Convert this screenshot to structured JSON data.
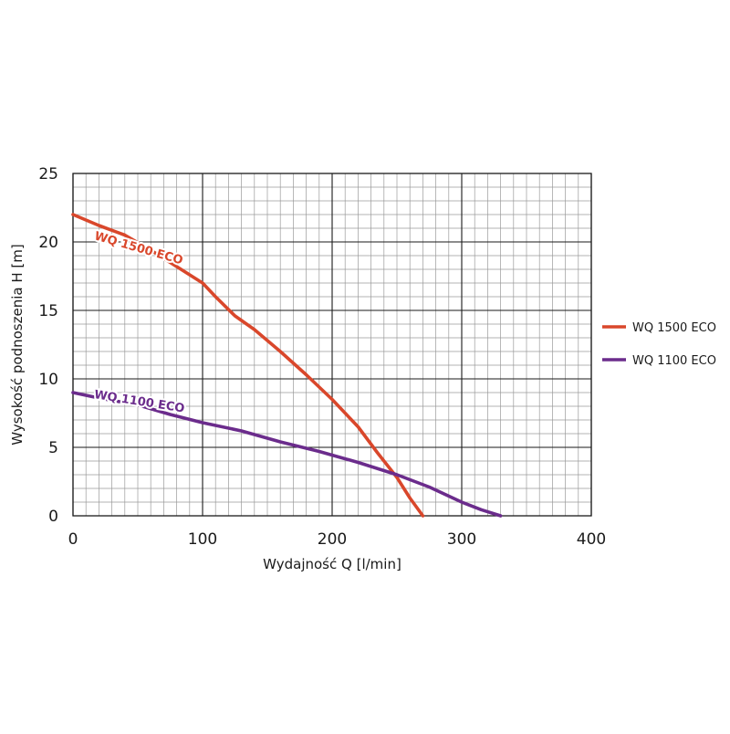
{
  "chart_data": {
    "type": "line",
    "xlabel": "Wydajność Q [l/min]",
    "ylabel": "Wysokość podnoszenia H [m]",
    "xlim": [
      0,
      400
    ],
    "ylim": [
      0,
      25
    ],
    "x_ticks": [
      "0",
      "100",
      "200",
      "300",
      "400"
    ],
    "y_ticks": [
      "0",
      "5",
      "10",
      "15",
      "20",
      "25"
    ],
    "grid": true,
    "legend_position": "right",
    "series": [
      {
        "name": "WQ 1500 ECO",
        "color": "#d9472b",
        "points": [
          [
            0,
            22
          ],
          [
            20,
            21.2
          ],
          [
            40,
            20.5
          ],
          [
            60,
            19.4
          ],
          [
            80,
            18.2
          ],
          [
            100,
            17
          ],
          [
            110,
            16
          ],
          [
            125,
            14.6
          ],
          [
            140,
            13.6
          ],
          [
            160,
            12
          ],
          [
            180,
            10.3
          ],
          [
            200,
            8.5
          ],
          [
            220,
            6.5
          ],
          [
            235,
            4.6
          ],
          [
            250,
            2.8
          ],
          [
            260,
            1.3
          ],
          [
            270,
            0
          ]
        ]
      },
      {
        "name": "WQ 1100 ECO",
        "color": "#6b2c8c",
        "points": [
          [
            0,
            9
          ],
          [
            20,
            8.6
          ],
          [
            50,
            8.1
          ],
          [
            75,
            7.4
          ],
          [
            100,
            6.8
          ],
          [
            130,
            6.2
          ],
          [
            160,
            5.4
          ],
          [
            190,
            4.7
          ],
          [
            220,
            3.9
          ],
          [
            250,
            3
          ],
          [
            275,
            2.1
          ],
          [
            300,
            1
          ],
          [
            315,
            0.45
          ],
          [
            330,
            0
          ]
        ]
      }
    ]
  }
}
